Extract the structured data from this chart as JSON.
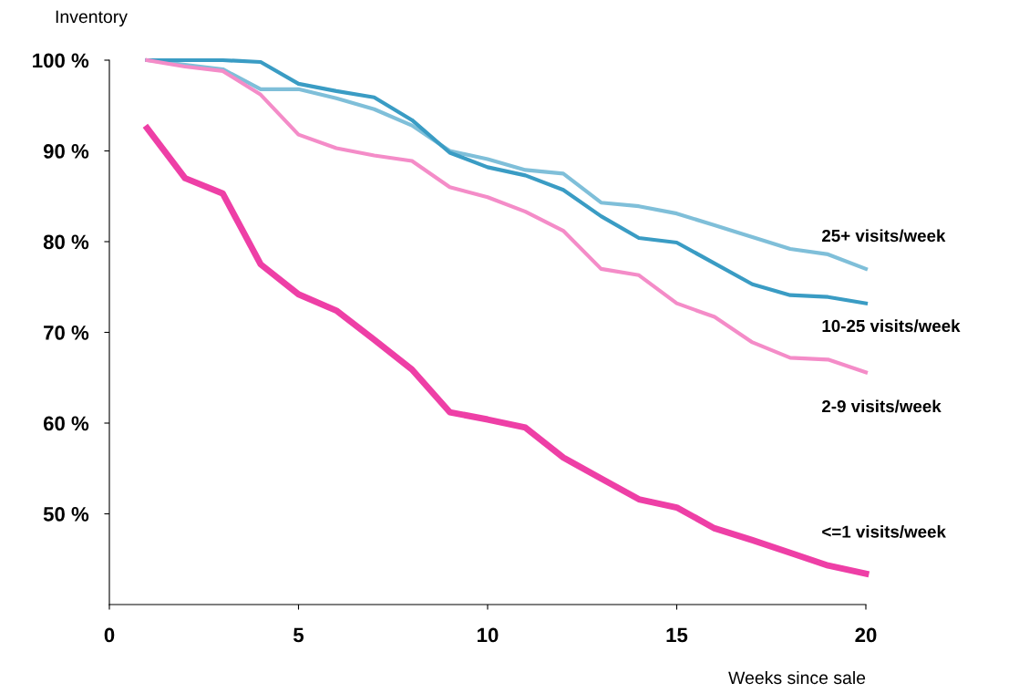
{
  "chart_data": {
    "type": "line",
    "ylabel": "Inventory",
    "xlabel": "Weeks since sale",
    "x": [
      1,
      2,
      3,
      4,
      5,
      6,
      7,
      8,
      9,
      10,
      11,
      12,
      13,
      14,
      15,
      16,
      17,
      18,
      19,
      20
    ],
    "series": [
      {
        "name": "25+ visits/week",
        "color": "#7fbfd9",
        "values": [
          100,
          99.5,
          99.0,
          96.8,
          96.8,
          95.8,
          94.6,
          92.8,
          90.0,
          89.1,
          87.9,
          87.5,
          84.3,
          83.9,
          83.1,
          81.8,
          80.5,
          79.2,
          78.6,
          77.0
        ]
      },
      {
        "name": "10-25 visits/week",
        "color": "#3a9cc4",
        "values": [
          100,
          100,
          100,
          99.8,
          97.4,
          96.6,
          95.9,
          93.4,
          89.8,
          88.2,
          87.3,
          85.7,
          82.8,
          80.4,
          79.9,
          77.6,
          75.3,
          74.1,
          73.9,
          73.2
        ]
      },
      {
        "name": "2-9 visits/week",
        "color": "#f48cc8",
        "values": [
          100,
          99.3,
          98.8,
          96.2,
          91.8,
          90.3,
          89.5,
          88.9,
          86.0,
          84.9,
          83.3,
          81.2,
          77.0,
          76.3,
          73.2,
          71.7,
          68.9,
          67.2,
          67.0,
          65.6
        ]
      },
      {
        "name": "<=1 visits/week",
        "color": "#ee3fa6",
        "values": [
          92.5,
          87.0,
          85.3,
          77.5,
          74.2,
          72.4,
          69.2,
          65.9,
          61.2,
          60.4,
          59.5,
          56.2,
          53.9,
          51.6,
          50.7,
          48.4,
          47.1,
          45.7,
          44.3,
          43.4
        ]
      }
    ],
    "xlim": [
      0,
      20
    ],
    "xticks": [
      0,
      5,
      10,
      15,
      20
    ],
    "ylim": [
      40,
      100
    ],
    "yticks": [
      {
        "value": 50,
        "label": "50 %"
      },
      {
        "value": 60,
        "label": "60 %"
      },
      {
        "value": 70,
        "label": "70 %"
      },
      {
        "value": 80,
        "label": "80 %"
      },
      {
        "value": 90,
        "label": "90 %"
      },
      {
        "value": 100,
        "label": "100 %"
      }
    ],
    "grid": false,
    "legend": false,
    "marker": "none",
    "line_style": "solid"
  }
}
